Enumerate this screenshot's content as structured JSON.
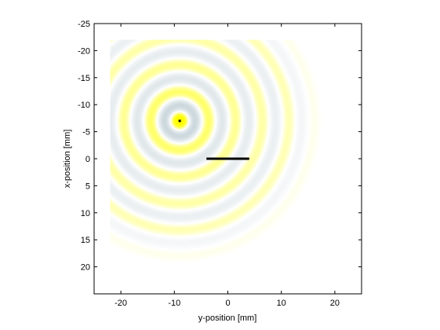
{
  "chart_data": {
    "type": "heatmap",
    "title": "",
    "xlabel": "y-position [mm]",
    "ylabel": "x-position [mm]",
    "xlim": [
      -25,
      25
    ],
    "ylim": [
      -25,
      25
    ],
    "y_axis_direction": "reversed (top = -25)",
    "grid": false,
    "x_ticks": [
      -20,
      -10,
      0,
      10,
      20
    ],
    "x_tick_labels": [
      "-20",
      "-10",
      "0",
      "10",
      "20"
    ],
    "y_ticks": [
      -25,
      -20,
      -15,
      -10,
      -5,
      0,
      5,
      10,
      15,
      20
    ],
    "y_tick_labels": [
      "-25",
      "-20",
      "-15",
      "-10",
      "-5",
      "0",
      "5",
      "10",
      "15",
      "20"
    ],
    "field": {
      "description": "circular wave pattern (alternating yellow and grey-blue rings) radiating from a point source",
      "source_point": {
        "y": -9,
        "x": -7
      },
      "extent_y": [
        -22,
        18
      ],
      "extent_x": [
        -22,
        20
      ],
      "wavelength_mm": 5,
      "max_radius_mm": 27,
      "colormap": {
        "positive": "#ffff00",
        "negative": "#a9bdc6",
        "zero": "#ffffff"
      }
    },
    "line_segment": {
      "y_start": -4,
      "y_end": 4,
      "x": 0,
      "color": "#000000"
    }
  }
}
